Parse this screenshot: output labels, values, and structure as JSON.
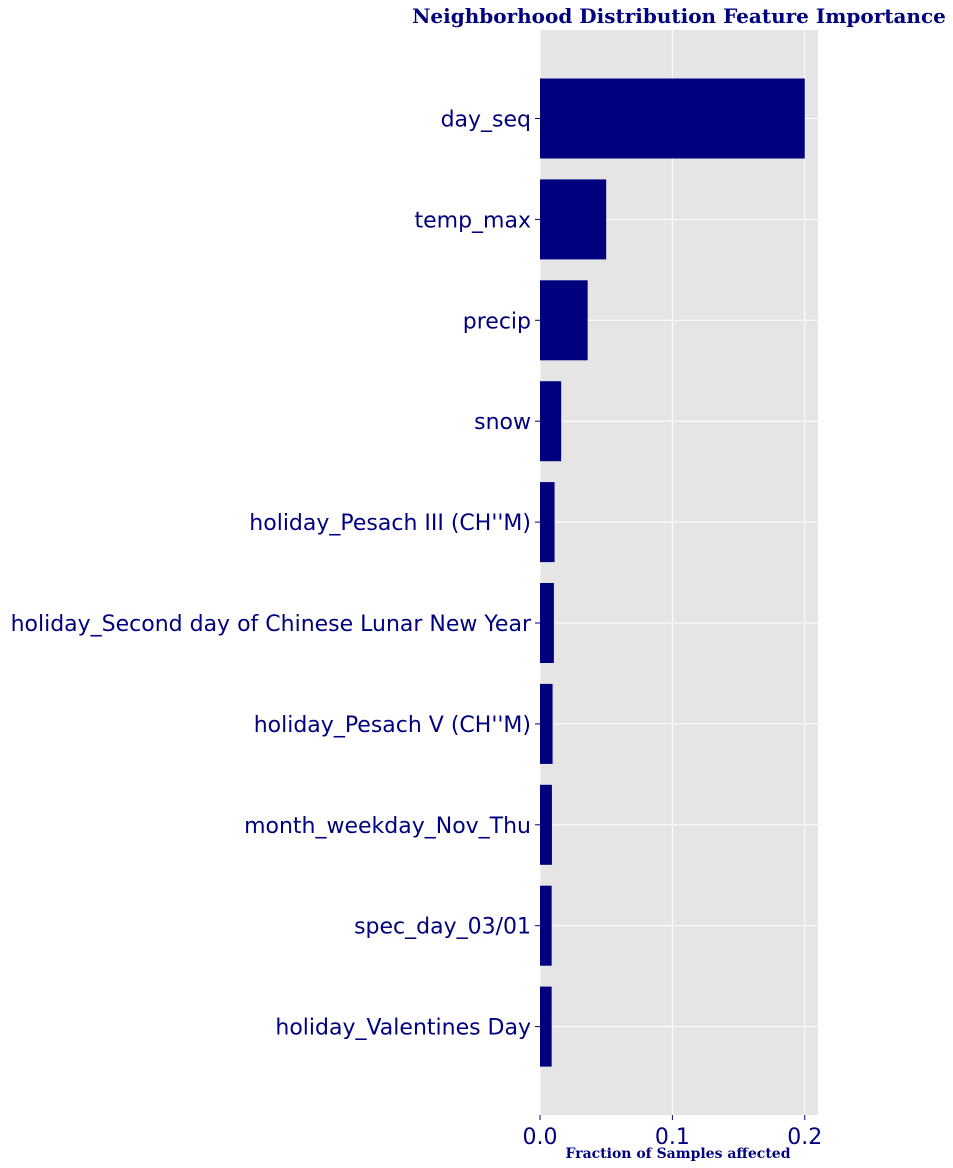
{
  "chart_data": {
    "type": "bar",
    "orientation": "horizontal",
    "title": "Neighborhood Distribution Feature Importance",
    "xlabel": "Fraction of Samples affected",
    "ylabel": "",
    "categories": [
      "day_seq",
      "temp_max",
      "precip",
      "snow",
      "holiday_Pesach III (CH''M)",
      "holiday_Second day of Chinese Lunar New Year",
      "holiday_Pesach V (CH''M)",
      "month_weekday_Nov_Thu",
      "spec_day_03/01",
      "holiday_Valentines Day"
    ],
    "values": [
      0.2,
      0.05,
      0.036,
      0.016,
      0.011,
      0.0105,
      0.0095,
      0.009,
      0.0088,
      0.0088
    ],
    "xlim": [
      0,
      0.21
    ],
    "xticks": [
      0.0,
      0.1,
      0.2
    ],
    "xtick_labels": [
      "0.0",
      "0.1",
      "0.2"
    ],
    "grid": true,
    "colors": {
      "bar": "#00007f",
      "text": "#00007f",
      "background": "#e5e5e5",
      "grid": "#ffffff"
    }
  }
}
